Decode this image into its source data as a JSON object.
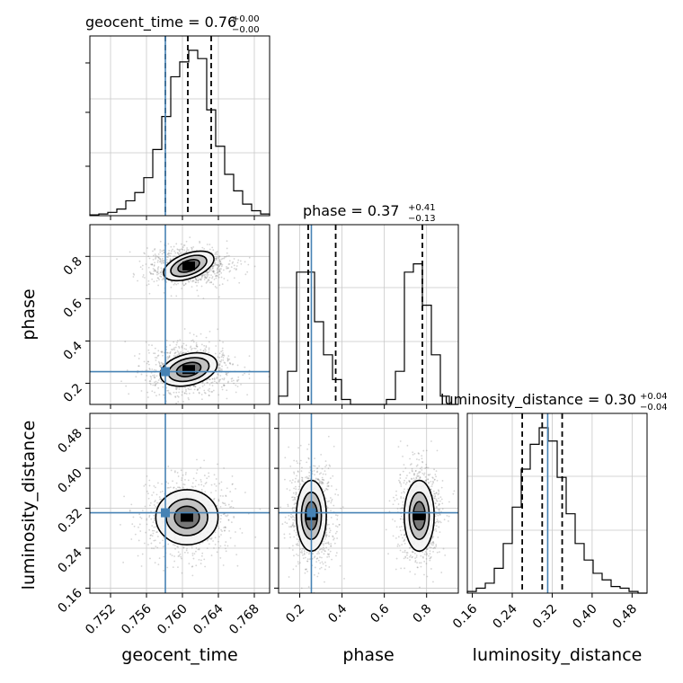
{
  "parameters": [
    "geocent_time",
    "phase",
    "luminosity_distance"
  ],
  "titles": {
    "geocent_time": {
      "label": "geocent_time = 0.76",
      "plus": "+0.00",
      "minus": "−0.00"
    },
    "phase": {
      "label": "phase = 0.37",
      "plus": "+0.41",
      "minus": "−0.13"
    },
    "luminosity_distance": {
      "label": "luminosity_distance = 0.30",
      "plus": "+0.04",
      "minus": "−0.04"
    }
  },
  "axis_labels": {
    "geocent_time": "geocent_time",
    "phase": "phase",
    "luminosity_distance": "luminosity_distance"
  },
  "colors": {
    "truth": "#4682b4",
    "hist": "#000000",
    "grid": "#c8c8c8",
    "quantile": "#000000"
  },
  "chart_data": {
    "type": "corner",
    "grid": true,
    "ranges": {
      "geocent_time": [
        0.7497,
        0.7697
      ],
      "phase": [
        0.1,
        0.95
      ],
      "luminosity_distance": [
        0.15,
        0.51
      ]
    },
    "ticks": {
      "geocent_time": {
        "values": [
          0.752,
          0.756,
          0.76,
          0.764,
          0.768
        ],
        "labels": [
          "0.752",
          "0.756",
          "0.760",
          "0.764",
          "0.768"
        ]
      },
      "phase": {
        "values": [
          0.2,
          0.4,
          0.6,
          0.8
        ],
        "labels": [
          "0.2",
          "0.4",
          "0.6",
          "0.8"
        ]
      },
      "luminosity_distance": {
        "values": [
          0.16,
          0.24,
          0.32,
          0.4,
          0.48
        ],
        "labels": [
          "0.16",
          "0.24",
          "0.32",
          "0.40",
          "0.48"
        ]
      }
    },
    "truths": {
      "geocent_time": 0.7581,
      "phase": 0.255,
      "luminosity_distance": 0.311
    },
    "quantiles": {
      "geocent_time": [
        0.7581,
        0.7606,
        0.7632
      ],
      "phase": [
        0.24,
        0.37,
        0.78
      ],
      "luminosity_distance": [
        0.26,
        0.3,
        0.34
      ]
    },
    "histograms": {
      "geocent_time": {
        "edges": [
          0.7497,
          0.7507,
          0.7517,
          0.7527,
          0.7537,
          0.7547,
          0.7557,
          0.7567,
          0.7577,
          0.7587,
          0.7597,
          0.7607,
          0.7617,
          0.7627,
          0.7637,
          0.7647,
          0.7657,
          0.7667,
          0.7677,
          0.7687,
          0.7697
        ],
        "counts": [
          0.005,
          0.01,
          0.02,
          0.04,
          0.09,
          0.14,
          0.23,
          0.4,
          0.6,
          0.84,
          0.93,
          1.0,
          0.95,
          0.64,
          0.42,
          0.25,
          0.15,
          0.07,
          0.03,
          0.01
        ]
      },
      "phase": {
        "edges": [
          0.1,
          0.1425,
          0.185,
          0.2275,
          0.27,
          0.3125,
          0.355,
          0.3975,
          0.44,
          0.4825,
          0.525,
          0.5675,
          0.61,
          0.6525,
          0.695,
          0.7375,
          0.78,
          0.8225,
          0.865,
          0.9075,
          0.95
        ],
        "counts": [
          0.05,
          0.2,
          0.8,
          0.8,
          0.5,
          0.3,
          0.15,
          0.03,
          0.0,
          0.0,
          0.0,
          0.0,
          0.03,
          0.2,
          0.8,
          0.85,
          0.6,
          0.3,
          0.05,
          0.0
        ]
      },
      "luminosity_distance": {
        "edges": [
          0.15,
          0.168,
          0.186,
          0.204,
          0.222,
          0.24,
          0.258,
          0.276,
          0.294,
          0.312,
          0.33,
          0.348,
          0.366,
          0.384,
          0.402,
          0.42,
          0.438,
          0.456,
          0.474,
          0.492,
          0.51
        ],
        "counts": [
          0.01,
          0.03,
          0.06,
          0.15,
          0.3,
          0.52,
          0.75,
          0.9,
          1.0,
          0.92,
          0.7,
          0.48,
          0.3,
          0.2,
          0.12,
          0.08,
          0.04,
          0.03,
          0.01,
          0.0
        ]
      }
    },
    "contours": {
      "phase_vs_geocent_time": [
        {
          "center": [
            0.7607,
            0.755
          ],
          "sigma": [
            0.002,
            0.04
          ],
          "levels": [
            0.6,
            1.0,
            1.4
          ],
          "rotation": -0.35
        },
        {
          "center": [
            0.7607,
            0.265
          ],
          "sigma": [
            0.0022,
            0.05
          ],
          "levels": [
            0.6,
            1.0,
            1.4
          ],
          "rotation": -0.25
        }
      ],
      "luminosity_distance_vs_geocent_time": [
        {
          "center": [
            0.7605,
            0.302
          ],
          "sigma": [
            0.0022,
            0.035
          ],
          "levels": [
            0.6,
            1.0,
            1.5
          ],
          "rotation": 0.0
        }
      ],
      "luminosity_distance_vs_phase": [
        {
          "center": [
            0.255,
            0.305
          ],
          "sigma": [
            0.045,
            0.045
          ],
          "levels": [
            0.6,
            1.0,
            1.5
          ],
          "rotation": 0.0
        },
        {
          "center": [
            0.765,
            0.305
          ],
          "sigma": [
            0.045,
            0.045
          ],
          "levels": [
            0.6,
            1.0,
            1.5
          ],
          "rotation": 0.0
        }
      ]
    }
  }
}
